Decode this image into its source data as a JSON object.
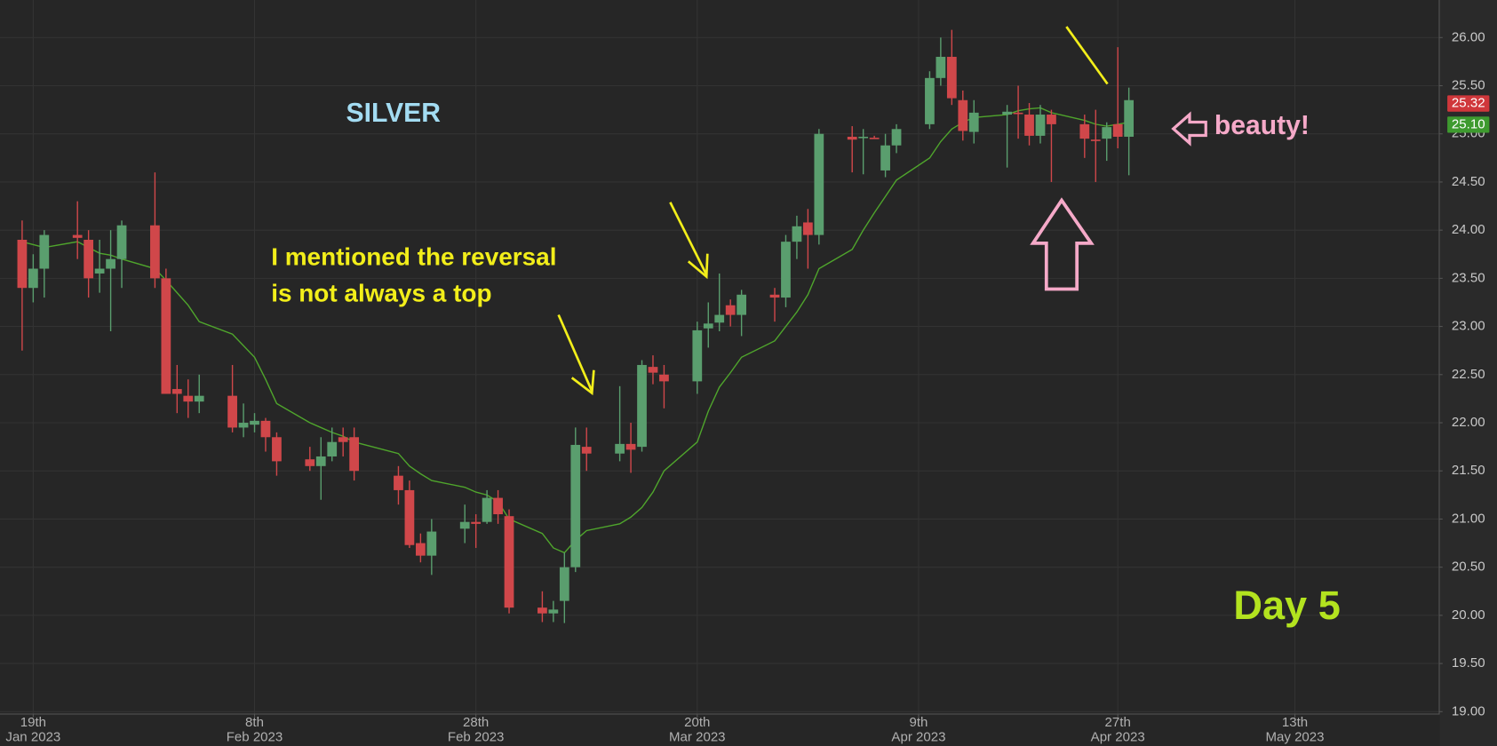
{
  "chart_data": {
    "type": "candlestick",
    "title": "SILVER",
    "x": [
      "2023-01-18",
      "2023-01-19",
      "2023-01-20",
      "2023-01-23",
      "2023-01-24",
      "2023-01-25",
      "2023-01-26",
      "2023-01-27",
      "2023-01-30",
      "2023-01-31",
      "2023-02-01",
      "2023-02-02",
      "2023-02-03",
      "2023-02-06",
      "2023-02-07",
      "2023-02-08",
      "2023-02-09",
      "2023-02-10",
      "2023-02-13",
      "2023-02-14",
      "2023-02-15",
      "2023-02-16",
      "2023-02-17",
      "2023-02-21",
      "2023-02-22",
      "2023-02-23",
      "2023-02-24",
      "2023-02-27",
      "2023-02-28",
      "2023-03-01",
      "2023-03-02",
      "2023-03-03",
      "2023-03-06",
      "2023-03-07",
      "2023-03-08",
      "2023-03-09",
      "2023-03-10",
      "2023-03-13",
      "2023-03-14",
      "2023-03-15",
      "2023-03-16",
      "2023-03-17",
      "2023-03-20",
      "2023-03-21",
      "2023-03-22",
      "2023-03-23",
      "2023-03-24",
      "2023-03-27",
      "2023-03-28",
      "2023-03-29",
      "2023-03-30",
      "2023-03-31",
      "2023-04-03",
      "2023-04-04",
      "2023-04-05",
      "2023-04-06",
      "2023-04-07",
      "2023-04-10",
      "2023-04-11",
      "2023-04-12",
      "2023-04-13",
      "2023-04-14",
      "2023-04-17",
      "2023-04-18",
      "2023-04-19",
      "2023-04-20",
      "2023-04-21",
      "2023-04-24",
      "2023-04-25",
      "2023-04-26",
      "2023-04-27",
      "2023-04-28"
    ],
    "open": [
      23.9,
      23.4,
      23.6,
      23.95,
      23.9,
      23.55,
      23.6,
      23.7,
      24.05,
      23.5,
      22.35,
      22.28,
      22.22,
      22.28,
      21.95,
      21.98,
      22.02,
      21.85,
      21.62,
      21.55,
      21.65,
      21.85,
      21.85,
      21.45,
      21.3,
      20.75,
      20.62,
      20.9,
      20.97,
      20.97,
      21.22,
      21.03,
      20.08,
      20.02,
      20.15,
      20.5,
      21.75,
      21.68,
      21.78,
      21.75,
      22.58,
      22.5,
      22.43,
      22.98,
      23.04,
      23.22,
      23.12,
      23.33,
      23.3,
      23.88,
      24.08,
      23.95,
      24.97,
      24.96,
      24.96,
      24.62,
      24.88,
      25.1,
      25.58,
      25.8,
      25.35,
      25.02,
      25.2,
      25.22,
      25.2,
      24.98,
      25.2,
      25.1,
      24.94,
      24.95,
      25.1,
      24.97
    ],
    "high": [
      24.1,
      23.75,
      24.0,
      24.3,
      24.0,
      23.9,
      24.0,
      24.1,
      24.6,
      23.6,
      22.6,
      22.45,
      22.5,
      22.6,
      22.2,
      22.1,
      22.05,
      21.9,
      21.75,
      21.85,
      21.95,
      21.95,
      21.95,
      21.55,
      21.4,
      20.85,
      21.0,
      21.15,
      21.05,
      21.3,
      21.3,
      21.1,
      20.25,
      20.15,
      20.65,
      21.95,
      21.95,
      22.38,
      22.0,
      22.65,
      22.7,
      22.6,
      23.05,
      23.25,
      23.55,
      23.28,
      23.38,
      23.4,
      23.95,
      24.15,
      24.22,
      25.05,
      25.08,
      25.05,
      24.98,
      25.0,
      25.1,
      25.65,
      26.0,
      26.08,
      25.45,
      25.35,
      25.3,
      25.5,
      25.32,
      25.3,
      25.25,
      25.2,
      25.25,
      25.12,
      25.9,
      25.48
    ],
    "low": [
      22.75,
      23.25,
      23.3,
      23.7,
      23.3,
      23.35,
      22.95,
      23.4,
      23.4,
      22.3,
      22.1,
      22.05,
      22.1,
      21.9,
      21.85,
      21.9,
      21.7,
      21.45,
      21.5,
      21.2,
      21.6,
      21.65,
      21.4,
      21.15,
      20.7,
      20.55,
      20.42,
      20.75,
      20.7,
      20.95,
      20.95,
      20.02,
      19.93,
      19.93,
      19.92,
      20.45,
      21.5,
      21.6,
      21.48,
      21.7,
      22.4,
      22.15,
      22.3,
      22.78,
      22.95,
      23.0,
      22.9,
      23.05,
      23.2,
      23.7,
      23.6,
      23.85,
      24.6,
      24.58,
      24.95,
      24.55,
      24.8,
      25.05,
      25.5,
      25.3,
      24.93,
      24.9,
      24.65,
      24.95,
      24.88,
      24.9,
      24.5,
      24.75,
      24.5,
      24.72,
      24.85,
      24.57
    ],
    "close": [
      23.4,
      23.6,
      23.95,
      23.92,
      23.5,
      23.6,
      23.7,
      24.05,
      23.5,
      22.3,
      22.3,
      22.22,
      22.28,
      21.95,
      22.0,
      22.02,
      21.85,
      21.6,
      21.55,
      21.65,
      21.8,
      21.8,
      21.5,
      21.3,
      20.73,
      20.62,
      20.87,
      20.97,
      20.95,
      21.22,
      21.05,
      20.08,
      20.02,
      20.06,
      20.5,
      21.77,
      21.68,
      21.78,
      21.72,
      22.6,
      22.52,
      22.43,
      22.96,
      23.03,
      23.12,
      23.12,
      23.33,
      23.3,
      23.88,
      24.04,
      23.95,
      25.0,
      24.94,
      24.97,
      24.95,
      24.88,
      25.05,
      25.58,
      25.8,
      25.37,
      25.03,
      25.22,
      25.23,
      25.21,
      24.98,
      25.2,
      25.1,
      24.95,
      24.93,
      25.07,
      24.97,
      25.35
    ],
    "up_color": "#5a9e6e",
    "down_color": "#d0474a",
    "ma": {
      "color": "#4fa52c",
      "values": [
        23.88,
        23.85,
        23.82,
        23.88,
        23.82,
        23.76,
        23.74,
        23.7,
        23.6,
        23.48,
        23.35,
        23.22,
        23.05,
        22.92,
        22.8,
        22.68,
        22.45,
        22.2,
        22.0,
        21.95,
        21.9,
        21.86,
        21.8,
        21.68,
        21.55,
        21.47,
        21.4,
        21.33,
        21.28,
        21.25,
        21.18,
        21.0,
        20.85,
        20.7,
        20.65,
        20.78,
        20.88,
        20.95,
        21.02,
        21.12,
        21.28,
        21.5,
        21.8,
        22.12,
        22.37,
        22.52,
        22.68,
        22.85,
        23.0,
        23.15,
        23.33,
        23.6,
        23.8,
        24.0,
        24.18,
        24.35,
        24.52,
        24.75,
        24.92,
        25.05,
        25.12,
        25.17,
        25.2,
        25.24,
        25.26,
        25.27,
        25.22,
        25.14,
        25.1,
        25.08,
        25.1,
        25.12
      ]
    },
    "xlim": [
      "2023-01-16",
      "2023-05-26"
    ],
    "xticks": [
      {
        "value": "2023-01-19",
        "label": [
          "19th",
          "Jan 2023"
        ]
      },
      {
        "value": "2023-02-08",
        "label": [
          "8th",
          "Feb 2023"
        ]
      },
      {
        "value": "2023-02-28",
        "label": [
          "28th",
          "Feb 2023"
        ]
      },
      {
        "value": "2023-03-20",
        "label": [
          "20th",
          "Mar 2023"
        ]
      },
      {
        "value": "2023-04-09",
        "label": [
          "9th",
          "Apr 2023"
        ]
      },
      {
        "value": "2023-04-27",
        "label": [
          "27th",
          "Apr 2023"
        ]
      },
      {
        "value": "2023-05-13",
        "label": [
          "13th",
          "May 2023"
        ]
      }
    ],
    "ylim": [
      18.98,
      26.39
    ],
    "yticks": [
      {
        "value": 19,
        "label": "19.00"
      },
      {
        "value": 19.5,
        "label": "19.50"
      },
      {
        "value": 20,
        "label": "20.00"
      },
      {
        "value": 20.5,
        "label": "20.50"
      },
      {
        "value": 21,
        "label": "21.00"
      },
      {
        "value": 21.5,
        "label": "21.50"
      },
      {
        "value": 22,
        "label": "22.00"
      },
      {
        "value": 22.5,
        "label": "22.50"
      },
      {
        "value": 23,
        "label": "23.00"
      },
      {
        "value": 23.5,
        "label": "23.50"
      },
      {
        "value": 24,
        "label": "24.00"
      },
      {
        "value": 24.5,
        "label": "24.50"
      },
      {
        "value": 25,
        "label": "25.00"
      },
      {
        "value": 25.5,
        "label": "25.50"
      },
      {
        "value": 26,
        "label": "26.00"
      }
    ],
    "grid": true,
    "price_labels": [
      {
        "value": 25.32,
        "label": "25.32",
        "color": "#d0373b"
      },
      {
        "value": 25.1,
        "label": "25.10",
        "color": "#3e9a2f"
      }
    ],
    "annotations": [
      {
        "text": [
          "I mentioned the reversal",
          "is not always a top"
        ],
        "color": "#f2ee1a"
      },
      {
        "text": [
          "beauty!"
        ],
        "color": "#f5a9c8"
      },
      {
        "text": [
          "Day 5"
        ],
        "color": "#b3e31f"
      }
    ],
    "title_color": "#a3dcf2"
  }
}
